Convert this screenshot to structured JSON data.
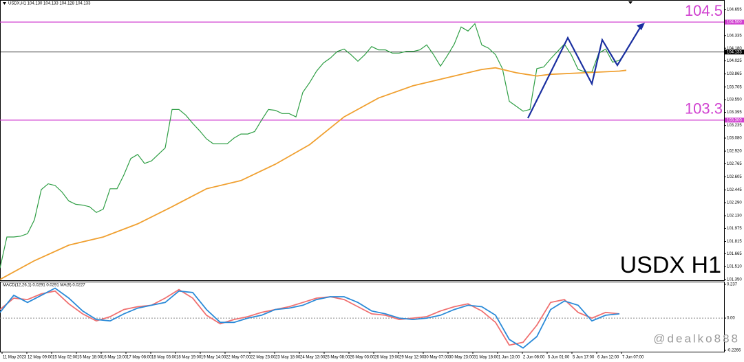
{
  "chart_data": [
    {
      "type": "line",
      "title": "USDX,H1 104.130 104.133 104.128 104.133",
      "annotation": "USDX H1",
      "xlim": [
        0,
        105.2
      ],
      "ylim": [
        101.34,
        104.77
      ],
      "yticks": [
        104.655,
        104.335,
        {
          "value": 104.18,
          "label": "104.180"
        },
        104.025,
        103.865,
        103.705,
        {
          "value": 103.55,
          "label": "103.550"
        },
        103.395,
        103.235,
        {
          "value": 103.08,
          "label": "103.080"
        },
        {
          "value": 102.92,
          "label": "102.920"
        },
        102.765,
        102.605,
        102.445,
        {
          "value": 102.29,
          "label": "102.290"
        },
        {
          "value": 102.13,
          "label": "102.130"
        },
        101.975,
        101.815,
        101.665,
        {
          "value": 101.51,
          "label": "101.510"
        },
        {
          "value": 101.35,
          "label": "101.350"
        }
      ],
      "xticks": [
        {
          "value": 0.3,
          "label": "11 May 2023"
        },
        {
          "value": 3.9,
          "label": "12 May 09:00"
        },
        {
          "value": 7.5,
          "label": "15 May 02:00"
        },
        {
          "value": 11.1,
          "label": "15 May 18:00"
        },
        {
          "value": 14.7,
          "label": "16 May 13:00"
        },
        {
          "value": 18.3,
          "label": "17 May 08:00"
        },
        {
          "value": 21.9,
          "label": "18 May 03:00"
        },
        {
          "value": 25.5,
          "label": "18 May 19:00"
        },
        {
          "value": 29.1,
          "label": "19 May 14:00"
        },
        {
          "value": 32.7,
          "label": "22 May 07:00"
        },
        {
          "value": 36.3,
          "label": "22 May 23:00"
        },
        {
          "value": 39.9,
          "label": "23 May 18:00"
        },
        {
          "value": 43.5,
          "label": "24 May 13:00"
        },
        {
          "value": 47.1,
          "label": "25 May 08:00"
        },
        {
          "value": 50.7,
          "label": "26 May 03:00"
        },
        {
          "value": 54.3,
          "label": "26 May 19:00"
        },
        {
          "value": 57.9,
          "label": "29 May 12:00"
        },
        {
          "value": 61.5,
          "label": "30 May 07:00"
        },
        {
          "value": 65.1,
          "label": "30 May 23:00"
        },
        {
          "value": 68.7,
          "label": "31 May 18:00"
        },
        {
          "value": 72.3,
          "label": "1 Jun 13:00"
        },
        {
          "value": 75.9,
          "label": "2 Jun 08:00"
        },
        {
          "value": 79.5,
          "label": "5 Jun 01:00"
        },
        {
          "value": 83.1,
          "label": "5 Jun 17:00"
        },
        {
          "value": 86.7,
          "label": "6 Jun 12:00"
        },
        {
          "value": 90.3,
          "label": "7 Jun 07:00"
        }
      ],
      "hlines": [
        {
          "value": 104.5,
          "label": "104.500",
          "color": "#d040d0"
        },
        {
          "value": 103.3,
          "label": "103.300",
          "color": "#d040d0"
        }
      ],
      "last": {
        "value": 104.133,
        "label": "104.133",
        "color": "#000000"
      },
      "series": [
        {
          "color": "#2e9e44",
          "values": [
            101.49,
            101.87,
            101.87,
            101.88,
            101.91,
            102.08,
            102.45,
            102.52,
            102.5,
            102.42,
            102.31,
            102.27,
            102.26,
            102.24,
            102.17,
            102.21,
            102.46,
            102.46,
            102.63,
            102.83,
            102.88,
            102.77,
            102.8,
            102.88,
            102.96,
            103.43,
            103.43,
            103.36,
            103.26,
            103.17,
            103.07,
            103.01,
            103.01,
            103.01,
            103.08,
            103.13,
            103.13,
            103.16,
            103.3,
            103.43,
            103.42,
            103.38,
            103.38,
            103.34,
            103.64,
            103.76,
            103.9,
            104.0,
            104.06,
            104.14,
            104.17,
            104.1,
            104.02,
            104.1,
            104.2,
            104.16,
            104.16,
            104.12,
            104.12,
            104.14,
            104.14,
            104.16,
            104.22,
            104.1,
            103.96,
            104.09,
            104.23,
            104.44,
            104.39,
            104.48,
            104.22,
            104.18,
            104.1,
            103.93,
            103.53,
            103.47,
            103.41,
            103.43,
            103.93,
            103.95,
            104.05,
            104.14,
            104.23,
            104.1,
            103.92,
            103.89,
            103.89,
            104.12,
            104.17,
            104.01,
            104.03,
            104.14
          ]
        },
        {
          "color": "#f0a030",
          "x": [
            0,
            5,
            10,
            15,
            20,
            25,
            30,
            35,
            40,
            45,
            50,
            55,
            60,
            65,
            70,
            72,
            75,
            78,
            80,
            85,
            90,
            91
          ],
          "values": [
            101.35,
            101.58,
            101.77,
            101.87,
            102.03,
            102.24,
            102.46,
            102.56,
            102.76,
            103.0,
            103.34,
            103.57,
            103.72,
            103.82,
            103.92,
            103.94,
            103.88,
            103.84,
            103.86,
            103.88,
            103.9,
            103.91
          ]
        }
      ]
    },
    {
      "type": "line",
      "title": "MACD(12,26,1) 0.0291 0.0291 MA(9) 0.0227",
      "xlim": [
        0,
        52.6
      ],
      "ylim": [
        -0.236,
        0.256
      ],
      "yticks": [
        0.237,
        {
          "value": 0,
          "label": "0.00"
        },
        -0.2266
      ],
      "series": [
        {
          "color": "#f07070",
          "values": [
            0.06,
            0.14,
            0.13,
            0.17,
            0.19,
            0.1,
            0.03,
            -0.02,
            0.01,
            0.06,
            0.08,
            0.09,
            0.14,
            0.2,
            0.14,
            0.02,
            -0.04,
            -0.01,
            0.01,
            0.04,
            0.06,
            0.08,
            0.11,
            0.14,
            0.15,
            0.13,
            0.08,
            0.03,
            0.02,
            -0.01,
            0.0,
            0.01,
            0.05,
            0.08,
            0.1,
            0.05,
            -0.03,
            -0.19,
            -0.17,
            -0.05,
            0.11,
            0.13,
            0.04,
            0.0,
            0.04,
            0.03
          ]
        },
        {
          "color": "#2a8ad8",
          "values": [
            0.04,
            0.16,
            0.11,
            0.16,
            0.21,
            0.14,
            0.05,
            -0.01,
            -0.02,
            0.03,
            0.07,
            0.09,
            0.11,
            0.19,
            0.18,
            0.06,
            -0.03,
            -0.03,
            0.0,
            0.02,
            0.06,
            0.07,
            0.09,
            0.13,
            0.15,
            0.15,
            0.11,
            0.05,
            0.03,
            0.0,
            -0.01,
            0.0,
            0.02,
            0.06,
            0.09,
            0.08,
            0.02,
            -0.15,
            -0.21,
            -0.13,
            0.06,
            0.12,
            0.09,
            -0.02,
            0.02,
            0.03
          ]
        }
      ]
    }
  ],
  "watermark": "@dealko888"
}
